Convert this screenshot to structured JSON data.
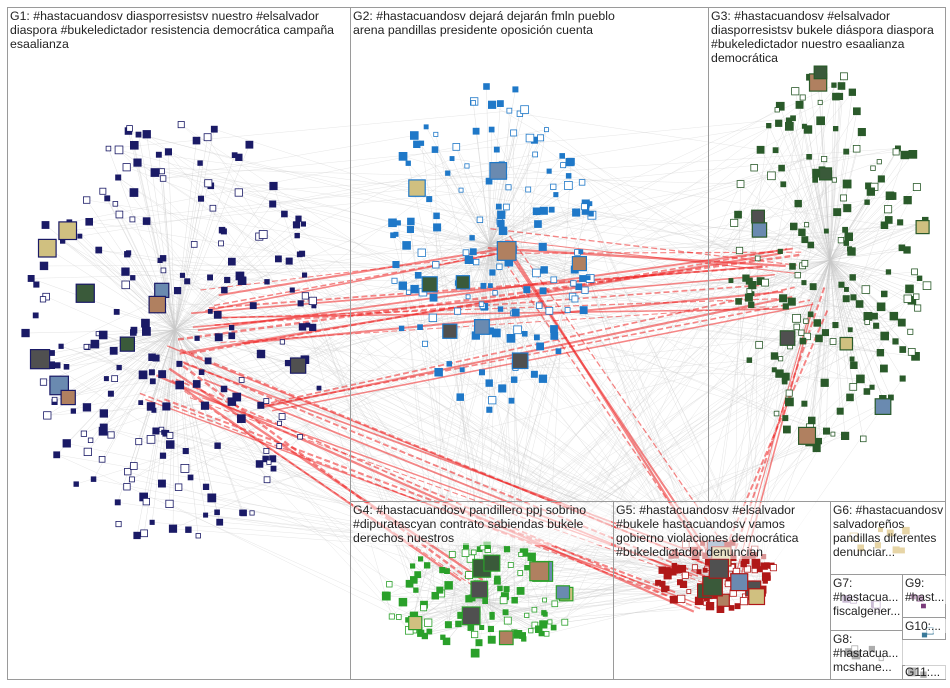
{
  "palette": {
    "background": "#ffffff",
    "box_border": "#9a9a9a",
    "edge_gray": "#c8c8c8",
    "edge_red": "#ee2222",
    "g1_node": "#1a1a66",
    "g2_node": "#1f78c8",
    "g3_node": "#2a5a2a",
    "g4_node": "#2aa02a",
    "g5_node": "#b01818"
  },
  "groups": [
    {
      "id": "g1",
      "label": "G1: #hastacuandosv diasporresistsv nuestro #elsalvador diaspora #bukeledictador resistencia democrática campaña esaalianza"
    },
    {
      "id": "g2",
      "label": "G2: #hastacuandosv dejará dejarán fmln pueblo arena pandillas presidente oposición cuenta"
    },
    {
      "id": "g3",
      "label": "G3: #hastacuandosv #elsalvador diasporresistsv bukele diáspora diaspora #bukeledictador nuestro esaalianza democrática"
    },
    {
      "id": "g4",
      "label": "G4: #hastacuandosv pandillero ppj sobrino #dipuratascyan contrato sabiendas bukele derechos nuestros"
    },
    {
      "id": "g5",
      "label": "G5: #hastacuandosv #elsalvador #bukele hastacuandosv vamos gobierno violaciones democrática #bukeledictador denuncian"
    },
    {
      "id": "g6",
      "label": "G6: #hastacuandosv salvadoreños pandillas diferentes denunciar..."
    },
    {
      "id": "g7",
      "label": "G7: #hastacua... fiscalgener..."
    },
    {
      "id": "g8",
      "label": "G8: #hastacua... mcshane..."
    },
    {
      "id": "g9",
      "label": "G9: #hast..."
    },
    {
      "id": "g10",
      "label": "G10:..."
    },
    {
      "id": "g11",
      "label": "G11:..."
    }
  ]
}
